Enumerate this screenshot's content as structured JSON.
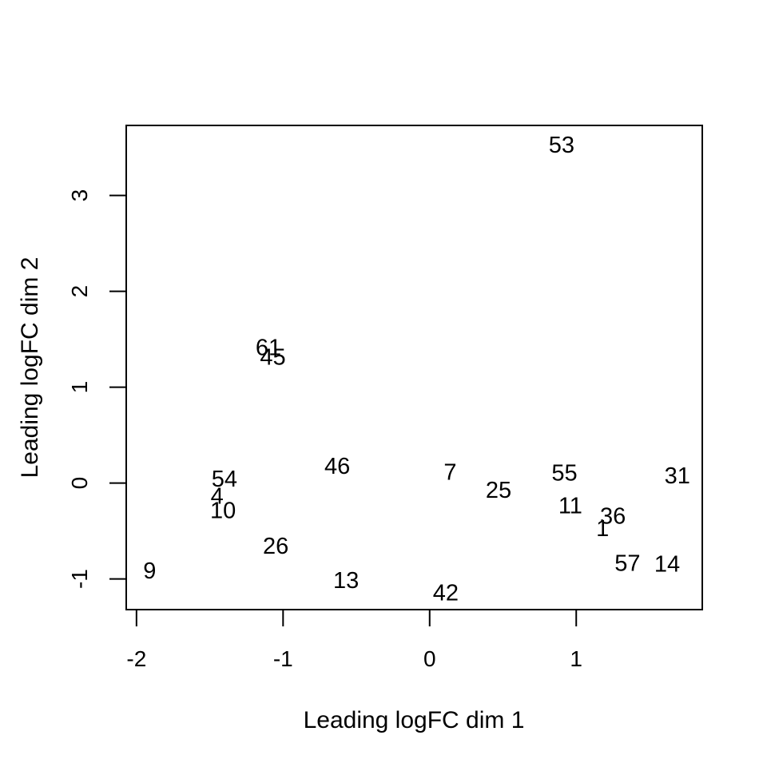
{
  "chart_data": {
    "type": "scatter",
    "title": "",
    "xlabel": "Leading logFC dim 1",
    "ylabel": "Leading logFC dim 2",
    "xlim": [
      -2.07,
      1.86
    ],
    "ylim": [
      -1.32,
      3.73
    ],
    "xticks": [
      -2,
      -1,
      0,
      1
    ],
    "yticks": [
      -1,
      0,
      1,
      2,
      3
    ],
    "grid": false,
    "legend": "none",
    "marker": "text-labels",
    "colors": {
      "ink": "#000000",
      "background": "#ffffff"
    },
    "points": [
      {
        "label": "53",
        "x": 0.9,
        "y": 3.52
      },
      {
        "label": "61",
        "x": -1.1,
        "y": 1.41
      },
      {
        "label": "45",
        "x": -1.07,
        "y": 1.31
      },
      {
        "label": "46",
        "x": -0.63,
        "y": 0.17
      },
      {
        "label": "54",
        "x": -1.4,
        "y": 0.04
      },
      {
        "label": "4",
        "x": -1.45,
        "y": -0.14
      },
      {
        "label": "10",
        "x": -1.41,
        "y": -0.29
      },
      {
        "label": "26",
        "x": -1.05,
        "y": -0.66
      },
      {
        "label": "9",
        "x": -1.91,
        "y": -0.92
      },
      {
        "label": "13",
        "x": -0.57,
        "y": -1.02
      },
      {
        "label": "42",
        "x": 0.11,
        "y": -1.15
      },
      {
        "label": "7",
        "x": 0.14,
        "y": 0.11
      },
      {
        "label": "25",
        "x": 0.47,
        "y": -0.08
      },
      {
        "label": "55",
        "x": 0.92,
        "y": 0.1
      },
      {
        "label": "11",
        "x": 0.96,
        "y": -0.24
      },
      {
        "label": "36",
        "x": 1.25,
        "y": -0.35
      },
      {
        "label": "1",
        "x": 1.18,
        "y": -0.48
      },
      {
        "label": "57",
        "x": 1.35,
        "y": -0.84
      },
      {
        "label": "14",
        "x": 1.62,
        "y": -0.85
      },
      {
        "label": "31",
        "x": 1.69,
        "y": 0.07
      }
    ]
  }
}
